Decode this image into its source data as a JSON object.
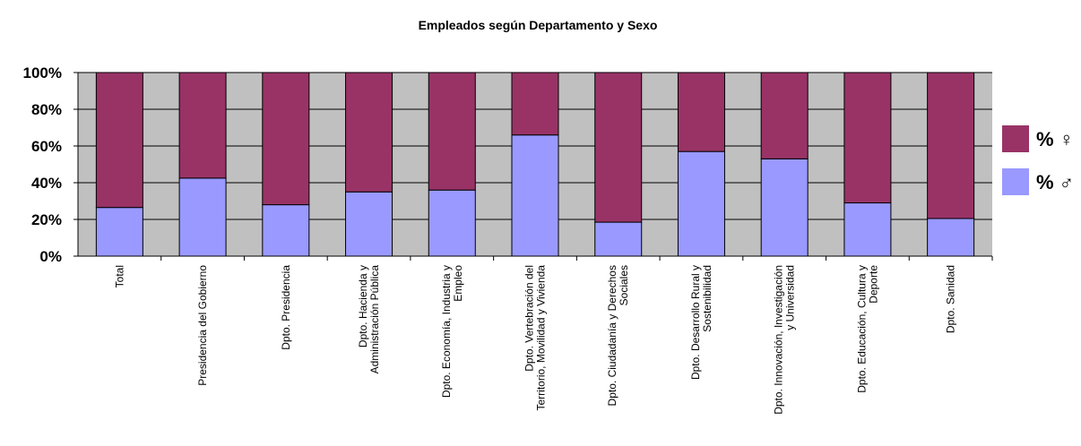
{
  "chart_data": {
    "type": "stacked_bar",
    "title": "Empleados según Departamento y Sexo",
    "categories": [
      "Total",
      "Presidencia del Gobierno",
      "Dpto. Presidencia",
      "Dpto. Hacienda y\nAdministración Pública",
      "Dpto. Economía, Industria y\nEmpleo",
      "Dpto. Vertebración del\nTerritorio, Movilidad y Vivienda",
      "Dpto. Ciudadanía y Derechos\nSociales",
      "Dpto. Desarrollo Rural y\nSostenibilidad",
      "Dpto. Innovación, Investigación\ny Universidad",
      "Dpto. Educación, Cultura y\nDeporte",
      "Dpto. Sanidad"
    ],
    "series": [
      {
        "name": "% ♂",
        "color": "#9999ff",
        "values": [
          26.5,
          42.5,
          28,
          35,
          36,
          66,
          18.5,
          57,
          53,
          29,
          20.5
        ]
      },
      {
        "name": "% ♀",
        "color": "#993366",
        "values": [
          73.5,
          57.5,
          72,
          65,
          64,
          34,
          81.5,
          43,
          47,
          71,
          79.5
        ]
      }
    ],
    "ylim": [
      0,
      100
    ],
    "yticks": [
      {
        "value": 0,
        "label": "0%"
      },
      {
        "value": 20,
        "label": "20%"
      },
      {
        "value": 40,
        "label": "40%"
      },
      {
        "value": 60,
        "label": "60%"
      },
      {
        "value": 80,
        "label": "80%"
      },
      {
        "value": 100,
        "label": "100%"
      }
    ],
    "grid": true,
    "legend": "right"
  }
}
